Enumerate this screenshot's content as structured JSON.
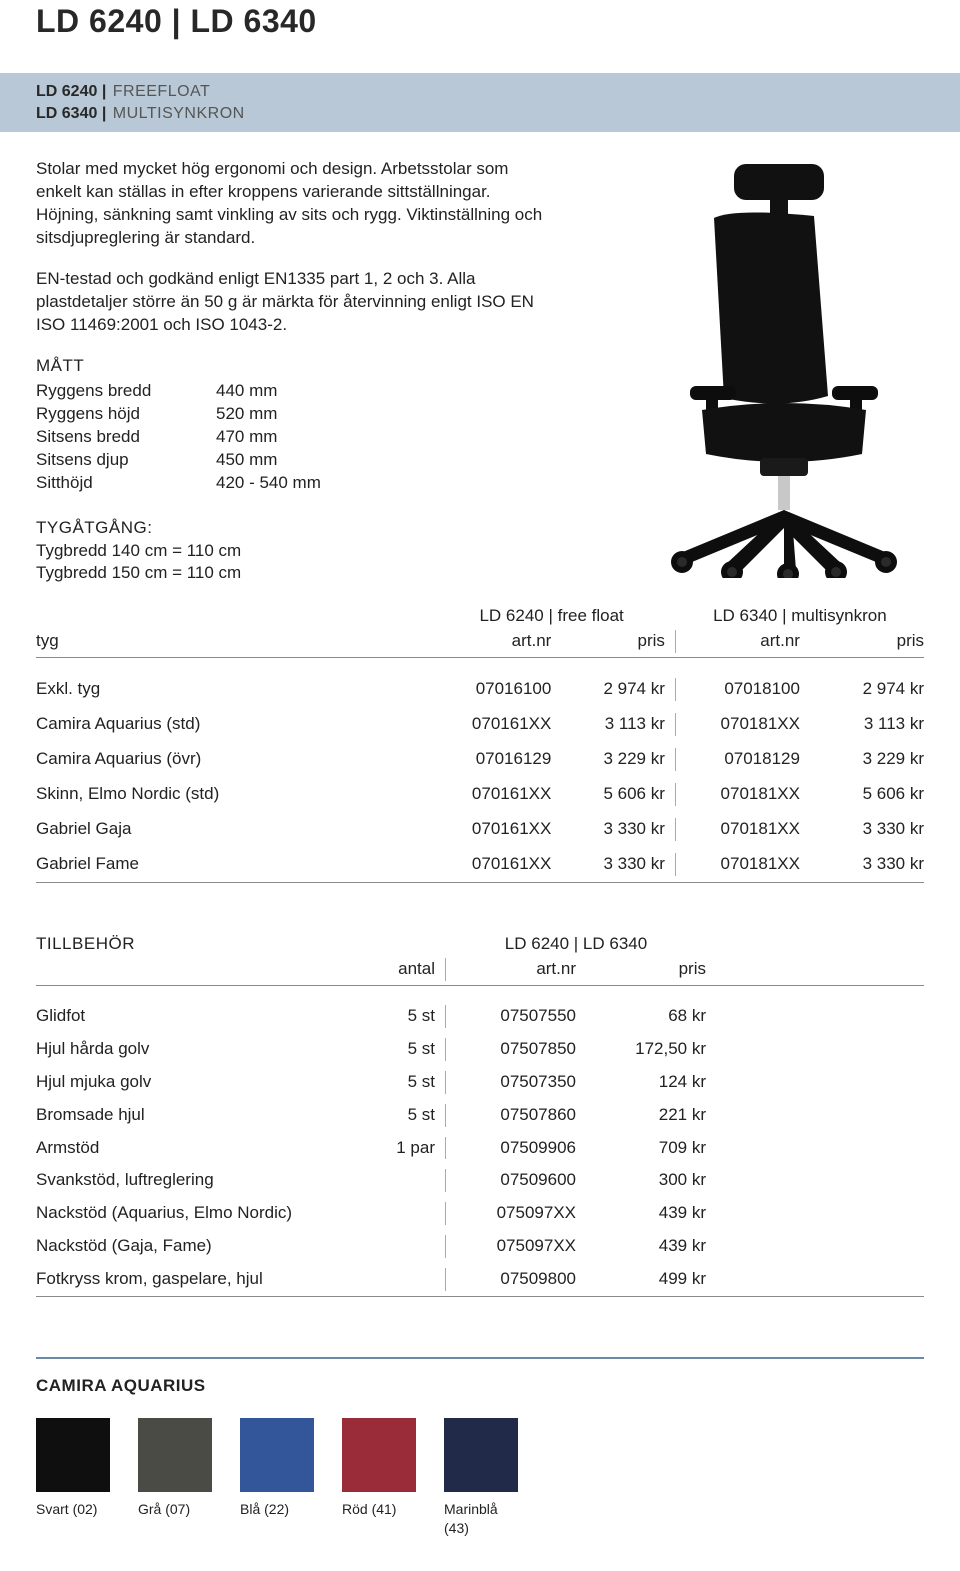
{
  "header": {
    "title": "LD 6240  |  LD 6340",
    "subtitle_lines": [
      {
        "model": "LD 6240",
        "variant": "FREEFLOAT"
      },
      {
        "model": "LD 6340",
        "variant": "MULTISYNKRON"
      }
    ]
  },
  "description": {
    "para1": "Stolar med mycket hög ergonomi och design. Arbetsstolar som enkelt kan ställas in efter kroppens varierande sittställningar. Höjning, sänkning samt vinkling av sits och rygg. Viktinställning och sitsdjupreglering är standard.",
    "para2": "EN-testad och godkänd enligt EN1335 part 1, 2 och 3. Alla plastdetaljer större än 50 g är märkta för återvinning enligt ISO EN ISO 11469:2001 och ISO 1043-2."
  },
  "measurements": {
    "heading": "MÅTT",
    "rows": [
      {
        "label": "Ryggens bredd",
        "value": "440 mm"
      },
      {
        "label": "Ryggens höjd",
        "value": "520 mm"
      },
      {
        "label": "Sitsens bredd",
        "value": "470 mm"
      },
      {
        "label": "Sitsens djup",
        "value": "450 mm"
      },
      {
        "label": "Sitthöjd",
        "value": "420 - 540 mm"
      }
    ]
  },
  "fabric_usage": {
    "heading": "TYGÅTGÅNG:",
    "lines": [
      "Tygbredd 140 cm = 110 cm",
      "Tygbredd 150 cm = 110 cm"
    ]
  },
  "price_table": {
    "group1_title": "LD 6240  |  free float",
    "group2_title": "LD 6340  |  multisynkron",
    "col_left": "tyg",
    "col_art": "art.nr",
    "col_price": "pris",
    "rows": [
      {
        "name": "Exkl. tyg",
        "art1": "07016100",
        "price1": "2 974 kr",
        "art2": "07018100",
        "price2": "2 974 kr"
      },
      {
        "name": "Camira Aquarius (std)",
        "art1": "070161XX",
        "price1": "3 113 kr",
        "art2": "070181XX",
        "price2": "3 113 kr"
      },
      {
        "name": "Camira Aquarius (övr)",
        "art1": "07016129",
        "price1": "3 229 kr",
        "art2": "07018129",
        "price2": "3 229 kr"
      },
      {
        "name": "Skinn, Elmo Nordic (std)",
        "art1": "070161XX",
        "price1": "5 606 kr",
        "art2": "070181XX",
        "price2": "5 606 kr"
      },
      {
        "name": "Gabriel Gaja",
        "art1": "070161XX",
        "price1": "3 330 kr",
        "art2": "070181XX",
        "price2": "3 330 kr"
      },
      {
        "name": "Gabriel Fame",
        "art1": "070161XX",
        "price1": "3 330 kr",
        "art2": "070181XX",
        "price2": "3 330 kr"
      }
    ]
  },
  "accessories": {
    "heading": "TILLBEHÖR",
    "group_title": "LD 6240  |  LD 6340",
    "col_qty": "antal",
    "col_art": "art.nr",
    "col_price": "pris",
    "rows": [
      {
        "name": "Glidfot",
        "qty": "5 st",
        "art": "07507550",
        "price": "68 kr"
      },
      {
        "name": "Hjul hårda golv",
        "qty": "5 st",
        "art": "07507850",
        "price": "172,50 kr"
      },
      {
        "name": "Hjul mjuka golv",
        "qty": "5 st",
        "art": "07507350",
        "price": "124 kr"
      },
      {
        "name": "Bromsade hjul",
        "qty": "5 st",
        "art": "07507860",
        "price": "221 kr"
      },
      {
        "name": "Armstöd",
        "qty": "1 par",
        "art": "07509906",
        "price": "709 kr"
      },
      {
        "name": "Svankstöd, luftreglering",
        "qty": "",
        "art": "07509600",
        "price": "300 kr"
      },
      {
        "name": "Nackstöd (Aquarius, Elmo Nordic)",
        "qty": "",
        "art": "075097XX",
        "price": "439 kr"
      },
      {
        "name": "Nackstöd (Gaja, Fame)",
        "qty": "",
        "art": "075097XX",
        "price": "439 kr"
      },
      {
        "name": "Fotkryss krom, gaspelare, hjul",
        "qty": "",
        "art": "07509800",
        "price": "499 kr"
      }
    ]
  },
  "swatches": {
    "heading": "CAMIRA AQUARIUS",
    "items": [
      {
        "label": "Svart (02)",
        "color": "#0f0f0f"
      },
      {
        "label": "Grå (07)",
        "color": "#4b4b45"
      },
      {
        "label": "Blå (22)",
        "color": "#33569b"
      },
      {
        "label": "Röd (41)",
        "color": "#9a2c3a"
      },
      {
        "label": "Marinblå (43)",
        "color": "#222a4a"
      }
    ]
  },
  "styling": {
    "band_color": "#b8c8d6",
    "rule_color": "#8a8a8a",
    "swatch_rule_color": "#6a8aa8"
  }
}
